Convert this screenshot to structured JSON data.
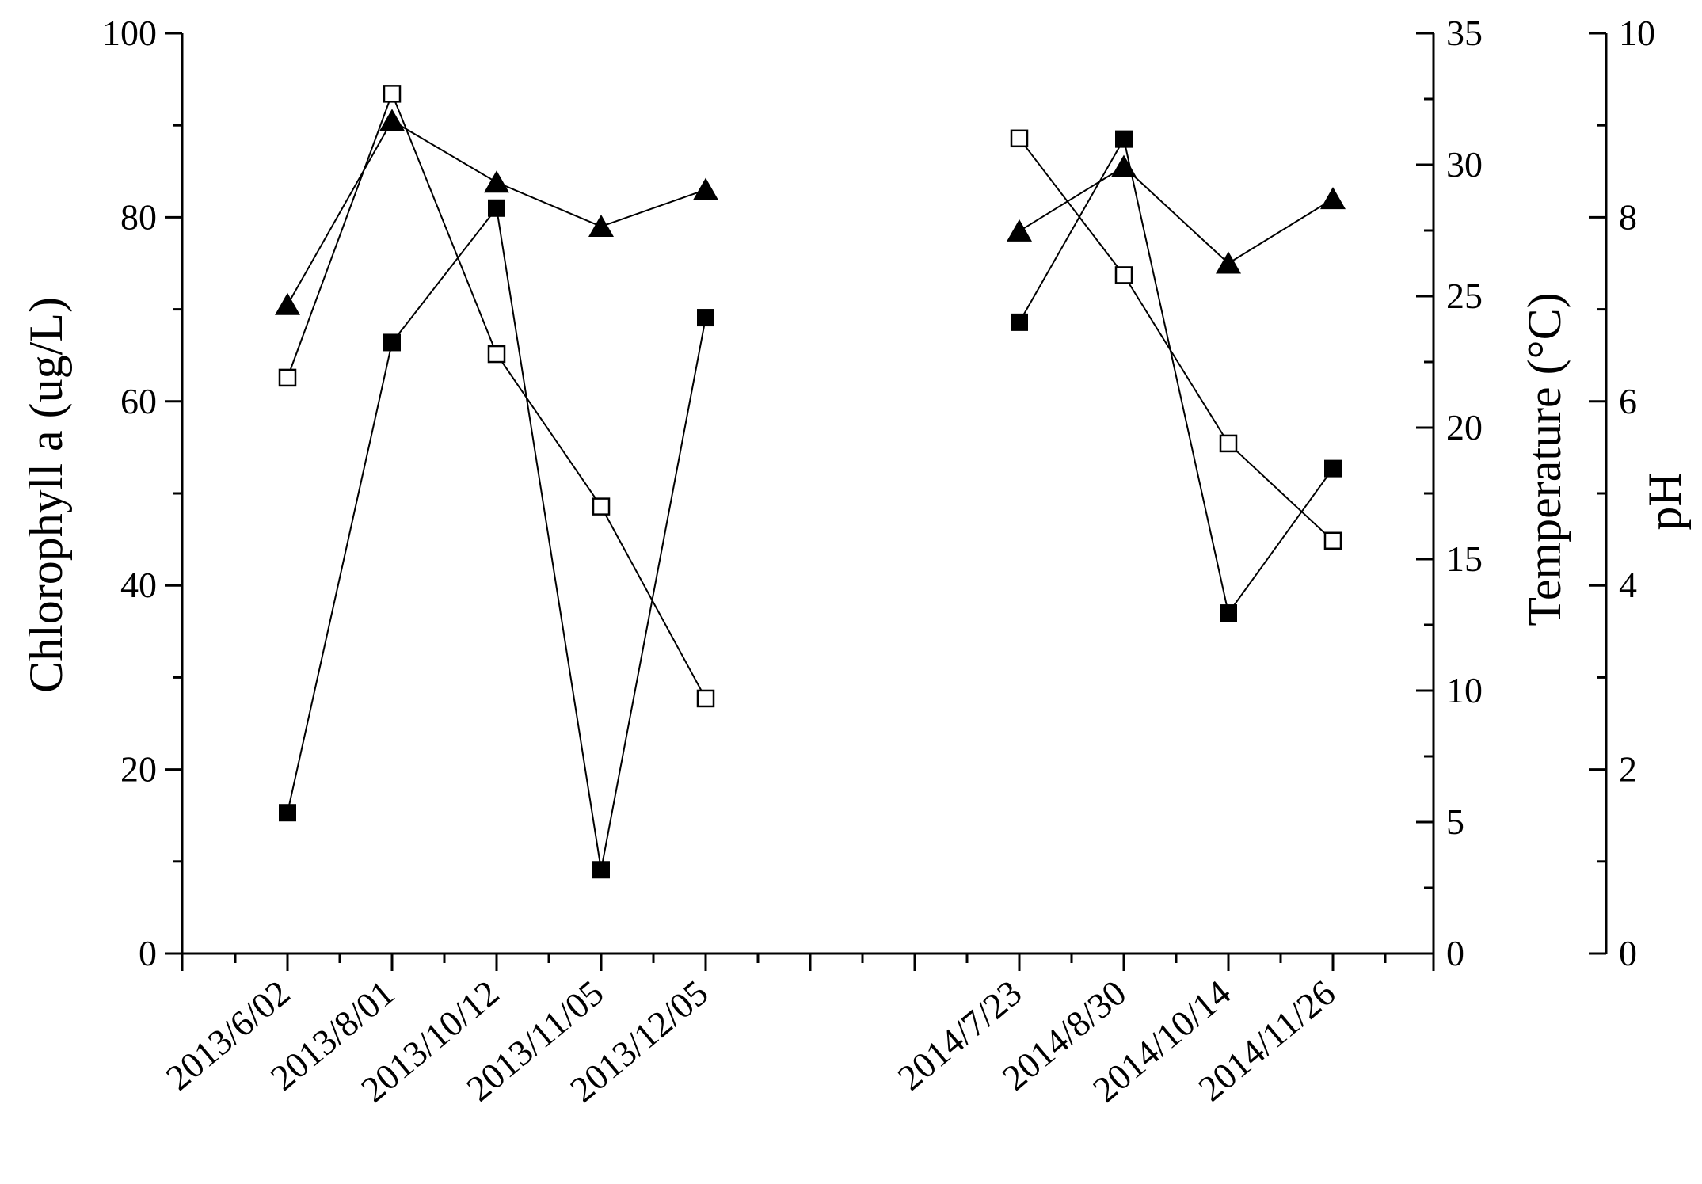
{
  "chart_data": {
    "type": "line",
    "categories": [
      "2013/6/02",
      "2013/8/01",
      "2013/10/12",
      "2013/11/05",
      "2013/12/05",
      "",
      "",
      "2014/7/23",
      "2014/8/30",
      "2014/10/14",
      "2014/11/26"
    ],
    "segments": [
      [
        0,
        4
      ],
      [
        7,
        10
      ]
    ],
    "axes": {
      "chlorophyll": {
        "label": "Chlorophyll a (ug/L)",
        "range": [
          0,
          100
        ],
        "ticks": [
          0,
          20,
          40,
          60,
          80,
          100
        ],
        "minor_step": 10
      },
      "temperature": {
        "label": "Temperature (°C)",
        "range": [
          0,
          35
        ],
        "ticks": [
          0,
          5,
          10,
          15,
          20,
          25,
          30,
          35
        ],
        "minor_step": 2.5
      },
      "ph": {
        "label": "pH",
        "range": [
          0,
          10
        ],
        "ticks": [
          0,
          2,
          4,
          6,
          8,
          10
        ],
        "minor_step": 1
      }
    },
    "series": [
      {
        "name": "Chlorophyll a",
        "axis": "chlorophyll",
        "marker": "filled-square",
        "values": [
          15.3,
          66.4,
          81.0,
          9.1,
          69.1,
          null,
          null,
          68.6,
          88.5,
          37.0,
          52.7
        ]
      },
      {
        "name": "Temperature",
        "axis": "temperature",
        "marker": "open-square",
        "values": [
          21.9,
          32.7,
          22.8,
          17.0,
          9.7,
          null,
          null,
          31.0,
          25.8,
          19.4,
          15.7
        ]
      },
      {
        "name": "pH",
        "axis": "ph",
        "marker": "filled-triangle",
        "values": [
          7.05,
          9.05,
          8.38,
          7.9,
          8.3,
          null,
          null,
          7.85,
          8.55,
          7.5,
          8.2
        ]
      }
    ]
  }
}
